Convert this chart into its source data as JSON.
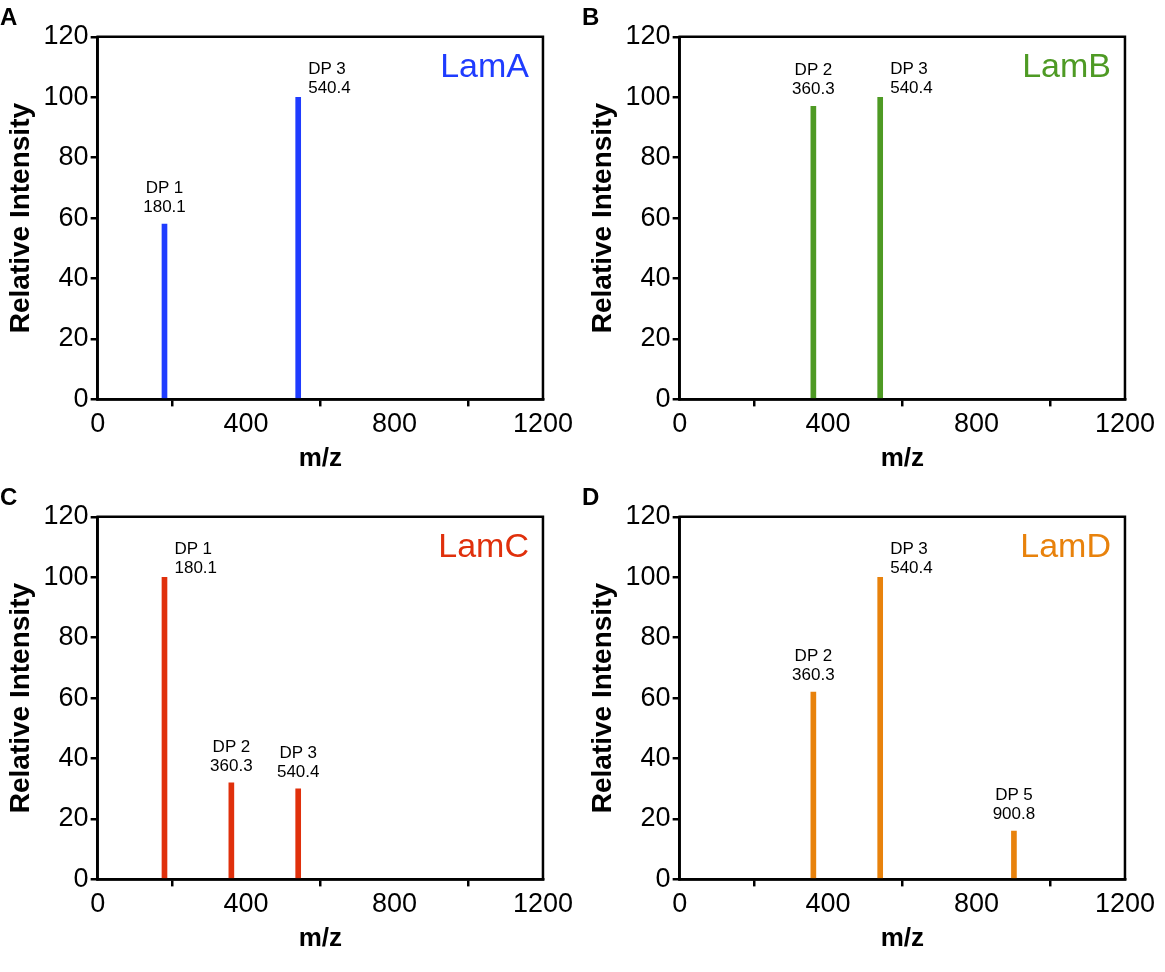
{
  "chart_data": [
    {
      "type": "bar",
      "title": "A",
      "xlabel": "m/z",
      "ylabel": "Relative Intensity",
      "xlim": [
        0,
        1200
      ],
      "xticks": [
        0,
        400,
        800,
        1200
      ],
      "ylim": [
        0,
        120
      ],
      "yticks": [
        0,
        20,
        40,
        60,
        80,
        100,
        120
      ],
      "series": [
        {
          "name": "LamA",
          "color": "#1f3cff",
          "x": [
            180.1,
            540.4
          ],
          "values": [
            58,
            100
          ]
        }
      ],
      "annotations": [
        {
          "text": "DP 1\n180.1",
          "x": 180.1,
          "y": 58
        },
        {
          "text": "DP 3\n540.4",
          "x": 540.4,
          "y": 100
        }
      ]
    },
    {
      "type": "bar",
      "title": "B",
      "xlabel": "m/z",
      "ylabel": "Relative Intensity",
      "xlim": [
        0,
        1200
      ],
      "xticks": [
        0,
        400,
        800,
        1200
      ],
      "ylim": [
        0,
        120
      ],
      "yticks": [
        0,
        20,
        40,
        60,
        80,
        100,
        120
      ],
      "series": [
        {
          "name": "LamB",
          "color": "#4e9a24",
          "x": [
            360.3,
            540.4
          ],
          "values": [
            97,
            100
          ]
        }
      ],
      "annotations": [
        {
          "text": "DP 2\n360.3",
          "x": 360.3,
          "y": 97
        },
        {
          "text": "DP 3\n540.4",
          "x": 540.4,
          "y": 100
        }
      ]
    },
    {
      "type": "bar",
      "title": "C",
      "xlabel": "m/z",
      "ylabel": "Relative Intensity",
      "xlim": [
        0,
        1200
      ],
      "xticks": [
        0,
        400,
        800,
        1200
      ],
      "ylim": [
        0,
        120
      ],
      "yticks": [
        0,
        20,
        40,
        60,
        80,
        100,
        120
      ],
      "series": [
        {
          "name": "LamC",
          "color": "#e0300c",
          "x": [
            180.1,
            360.3,
            540.4
          ],
          "values": [
            100,
            32,
            30
          ]
        }
      ],
      "annotations": [
        {
          "text": "DP 1\n180.1",
          "x": 180.1,
          "y": 100
        },
        {
          "text": "DP 2\n360.3",
          "x": 360.3,
          "y": 32
        },
        {
          "text": "DP 3\n540.4",
          "x": 540.4,
          "y": 30
        }
      ]
    },
    {
      "type": "bar",
      "title": "D",
      "xlabel": "m/z",
      "ylabel": "Relative Intensity",
      "xlim": [
        0,
        1200
      ],
      "xticks": [
        0,
        400,
        800,
        1200
      ],
      "ylim": [
        0,
        120
      ],
      "yticks": [
        0,
        20,
        40,
        60,
        80,
        100,
        120
      ],
      "series": [
        {
          "name": "LamD",
          "color": "#e8820c",
          "x": [
            360.3,
            540.4,
            900.8
          ],
          "values": [
            62,
            100,
            16
          ]
        }
      ],
      "annotations": [
        {
          "text": "DP 2\n360.3",
          "x": 360.3,
          "y": 62
        },
        {
          "text": "DP 3\n540.4",
          "x": 540.4,
          "y": 100
        },
        {
          "text": "DP 5\n900.8",
          "x": 900.8,
          "y": 16
        }
      ]
    }
  ]
}
